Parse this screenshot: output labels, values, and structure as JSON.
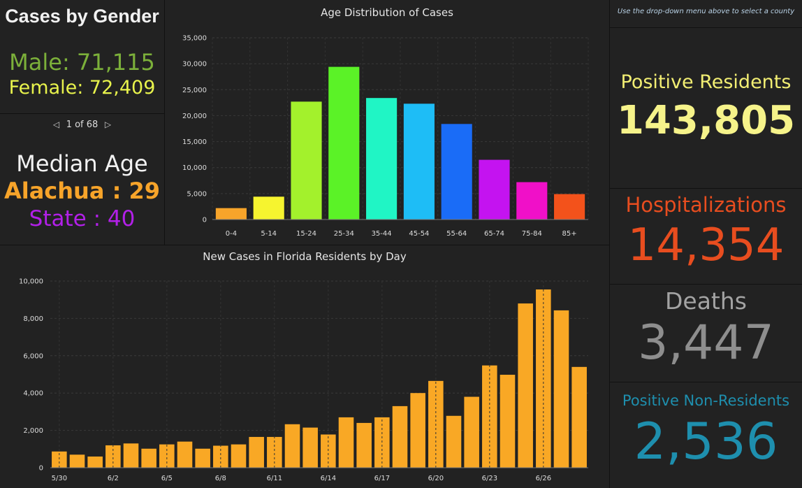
{
  "gender": {
    "title": "Cases by Gender",
    "male": "Male: 71,115",
    "female": "Female: 72,409"
  },
  "pager": {
    "label": "1 of 68"
  },
  "median": {
    "title": "Median Age",
    "county": "Alachua : 29",
    "state": "State : 40"
  },
  "hint": "Use the drop-down menu above to select a county",
  "positive": {
    "label": "Positive Residents",
    "value": "143,805"
  },
  "hospitalizations": {
    "label": "Hospitalizations",
    "value": "14,354"
  },
  "deaths": {
    "label": "Deaths",
    "value": "3,447"
  },
  "nonresidents": {
    "label": "Positive Non-Residents",
    "value": "2,536"
  },
  "colors": {
    "male": "#7cb03a",
    "female": "#e8f34c",
    "median_county": "#f7a42a",
    "median_state": "#b220e8",
    "positive": "#f6f38a",
    "hospitalizations": "#e84d1f",
    "deaths": "#8e8e8e",
    "nonresidents": "#1e8fae",
    "daily_bars": "#f9a825"
  },
  "icons": {
    "prev": "caret-left-icon",
    "next": "caret-right-icon"
  },
  "chart_data": [
    {
      "type": "bar",
      "title": "Age Distribution of Cases",
      "categories": [
        "0-4",
        "5-14",
        "15-24",
        "25-34",
        "35-44",
        "45-54",
        "55-64",
        "65-74",
        "75-84",
        "85+"
      ],
      "values": [
        2200,
        4400,
        22700,
        29400,
        23400,
        22300,
        18400,
        11500,
        7200,
        4900
      ],
      "colors": [
        "#f7a42a",
        "#f6f42f",
        "#a3f12c",
        "#5bf227",
        "#20f5c5",
        "#1ebdf6",
        "#1a6cf7",
        "#c413f0",
        "#f010c8",
        "#f3521b"
      ],
      "ylim": [
        0,
        35000
      ],
      "yticks": [
        0,
        5000,
        10000,
        15000,
        20000,
        25000,
        30000,
        35000
      ],
      "ytick_labels": [
        "0",
        "5,000",
        "10,000",
        "15,000",
        "20,000",
        "25,000",
        "30,000",
        "35,000"
      ],
      "grid": true,
      "legend": "none"
    },
    {
      "type": "bar",
      "title": "New Cases in Florida Residents by Day",
      "x": [
        "5/30",
        "5/31",
        "6/1",
        "6/2",
        "6/3",
        "6/4",
        "6/5",
        "6/6",
        "6/7",
        "6/8",
        "6/9",
        "6/10",
        "6/11",
        "6/12",
        "6/13",
        "6/14",
        "6/15",
        "6/16",
        "6/17",
        "6/18",
        "6/19",
        "6/20",
        "6/21",
        "6/22",
        "6/23",
        "6/24",
        "6/25",
        "6/26",
        "6/27",
        "6/28"
      ],
      "values": [
        870,
        700,
        600,
        1200,
        1300,
        1020,
        1250,
        1400,
        1020,
        1180,
        1250,
        1650,
        1650,
        2330,
        2150,
        1780,
        2700,
        2400,
        2700,
        3300,
        4000,
        4650,
        2780,
        3800,
        5480,
        4980,
        8800,
        9550,
        8430,
        5400
      ],
      "xtick_labels": [
        "5/30",
        "6/2",
        "6/5",
        "6/8",
        "6/11",
        "6/14",
        "6/17",
        "6/20",
        "6/23",
        "6/26"
      ],
      "ylim": [
        0,
        10000
      ],
      "yticks": [
        0,
        2000,
        4000,
        6000,
        8000,
        10000
      ],
      "ytick_labels": [
        "0",
        "2,000",
        "4,000",
        "6,000",
        "8,000",
        "10,000"
      ],
      "grid": true,
      "legend": "none"
    }
  ]
}
